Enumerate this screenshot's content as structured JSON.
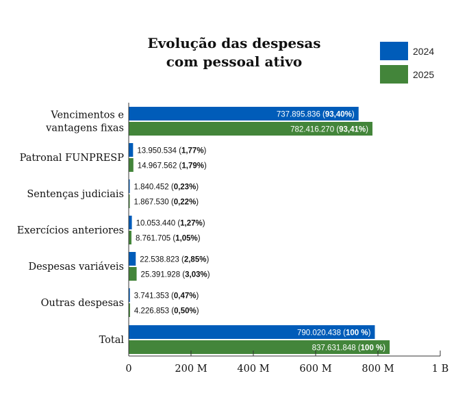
{
  "chart_data": {
    "type": "bar",
    "orientation": "horizontal",
    "title_lines": [
      "Evolução das despesas",
      "com pessoal ativo"
    ],
    "categories": [
      [
        "Vencimentos e",
        "vantagens fixas"
      ],
      [
        "Patronal FUNPRESP"
      ],
      [
        "Sentenças judiciais"
      ],
      [
        "Exercícios anteriores"
      ],
      [
        "Despesas variáveis"
      ],
      [
        "Outras despesas"
      ],
      [
        "Total"
      ]
    ],
    "series": [
      {
        "name": "2024",
        "color": "#005cb9",
        "values": [
          737895836,
          13950534,
          1840452,
          10053440,
          22538823,
          3741353,
          790020438
        ],
        "value_labels": [
          "737.895.836",
          "13.950.534",
          "1.840.452",
          "10.053.440",
          "22.538.823",
          "3.741.353",
          "790.020.438"
        ],
        "pct_labels": [
          "93,40%",
          "1,77%",
          "0,23%",
          "1,27%",
          "2,85%",
          "0,47%",
          "100 %"
        ]
      },
      {
        "name": "2025",
        "color": "#43853a",
        "values": [
          782416270,
          14967562,
          1867530,
          8761705,
          25391928,
          4226853,
          837631848
        ],
        "value_labels": [
          "782.416.270",
          "14.967.562",
          "1.867.530",
          "8.761.705",
          "25.391.928",
          "4.226.853",
          "837.631.848"
        ],
        "pct_labels": [
          "93,41%",
          "1,79%",
          "0,22%",
          "1,05%",
          "3,03%",
          "0,50%",
          "100 %"
        ]
      }
    ],
    "xlim": [
      0,
      1000000000
    ],
    "xticks": [
      0,
      200000000,
      400000000,
      600000000,
      800000000,
      1000000000
    ],
    "xtick_labels": [
      "0",
      "200 M",
      "400 M",
      "600 M",
      "800 M",
      "1 B"
    ],
    "legend_position": "top-right",
    "grid": false
  }
}
